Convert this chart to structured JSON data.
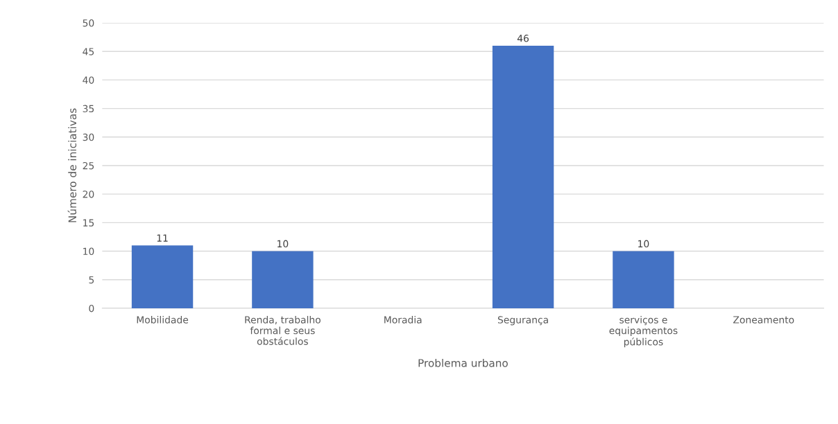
{
  "chart_data": {
    "type": "bar",
    "xlabel": "Problema urbano",
    "ylabel": "Número de iniciativas",
    "categories": [
      "Mobilidade",
      "Renda, trabalho\nformal e seus\nobstáculos",
      "Moradia",
      "Segurança",
      "serviços e\nequipamentos\npúblicos",
      "Zoneamento"
    ],
    "values": [
      11,
      10,
      null,
      46,
      10,
      null
    ],
    "color": "#4472c4",
    "ylim": [
      0,
      50
    ],
    "yticks": [
      0,
      5,
      10,
      15,
      20,
      25,
      30,
      35,
      40,
      45,
      50
    ],
    "grid": "y",
    "data_labels": true
  }
}
